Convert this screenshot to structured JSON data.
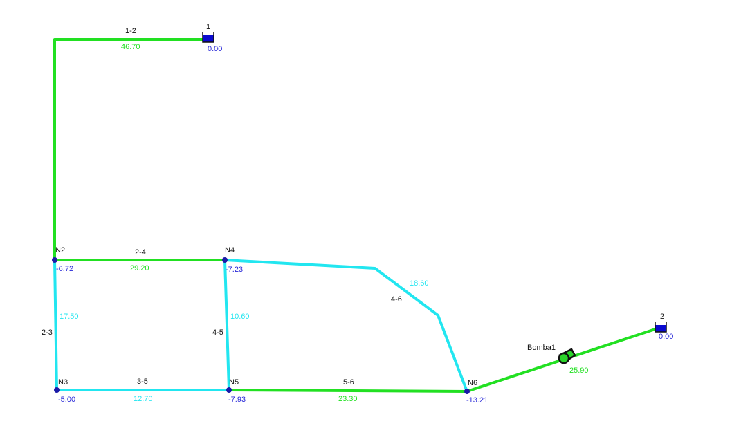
{
  "colors": {
    "green": "#22e022",
    "cyan": "#22e6f0",
    "node": "#1a1aa8",
    "node_value": "#2a2ad8",
    "label": "#111111",
    "tank": "#0a0ad0",
    "pump": "#2ad42a"
  },
  "tanks": [
    {
      "id": "1",
      "value": "0.00"
    },
    {
      "id": "2",
      "value": "0.00"
    }
  ],
  "nodes": [
    {
      "id": "N2",
      "value": "-6.72"
    },
    {
      "id": "N4",
      "value": "-7.23"
    },
    {
      "id": "N3",
      "value": "-5.00"
    },
    {
      "id": "N5",
      "value": "-7.93"
    },
    {
      "id": "N6",
      "value": "-13.21"
    }
  ],
  "pipes": [
    {
      "id": "1-2",
      "flow": "46.70"
    },
    {
      "id": "2-4",
      "flow": "29.20"
    },
    {
      "id": "2-3",
      "flow": "17.50"
    },
    {
      "id": "4-5",
      "flow": "10.60"
    },
    {
      "id": "3-5",
      "flow": "12.70"
    },
    {
      "id": "5-6",
      "flow": "23.30"
    },
    {
      "id": "4-6",
      "flow": "18.60"
    }
  ],
  "pump": {
    "id": "Bomba1",
    "flow": "25.90"
  }
}
